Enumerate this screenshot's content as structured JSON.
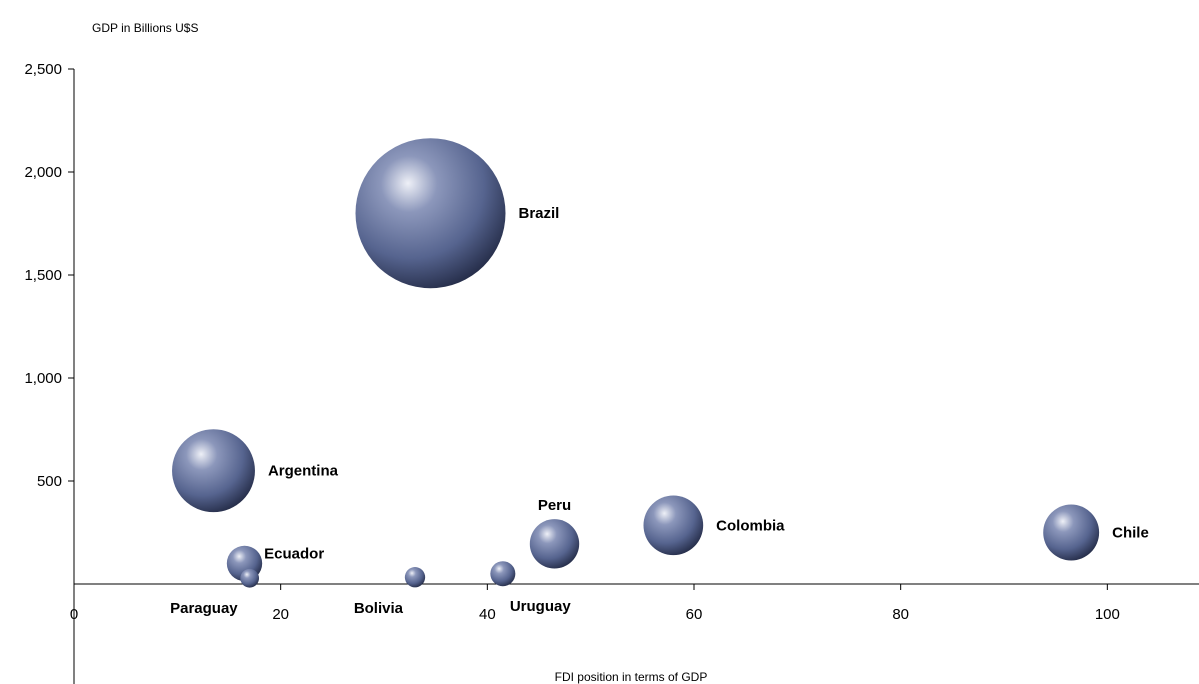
{
  "chart_data": {
    "type": "bubble",
    "ylabel": "GDP in Billions U$S",
    "xlabel": "FDI position in terms of GDP",
    "xlim": [
      0,
      108
    ],
    "ylim": [
      0,
      2500
    ],
    "x_ticks": [
      0,
      20,
      40,
      60,
      80,
      100
    ],
    "y_ticks": [
      500,
      1000,
      1500,
      2000,
      2500
    ],
    "x_tick_labels": [
      "0",
      "20",
      "40",
      "60",
      "80",
      "100"
    ],
    "y_tick_labels": [
      "500",
      "1,000",
      "1,500",
      "2,000",
      "2,500"
    ],
    "grid": false,
    "bubble_color": "#5a6a95",
    "points": [
      {
        "label": "Brazil",
        "x": 34.5,
        "y": 1800,
        "size": 1800
      },
      {
        "label": "Argentina",
        "x": 13.5,
        "y": 550,
        "size": 550
      },
      {
        "label": "Ecuador",
        "x": 16.5,
        "y": 100,
        "size": 100
      },
      {
        "label": "Paraguay",
        "x": 17,
        "y": 28,
        "size": 28
      },
      {
        "label": "Bolivia",
        "x": 33,
        "y": 33,
        "size": 33
      },
      {
        "label": "Uruguay",
        "x": 41.5,
        "y": 50,
        "size": 50
      },
      {
        "label": "Peru",
        "x": 46.5,
        "y": 195,
        "size": 195
      },
      {
        "label": "Colombia",
        "x": 58,
        "y": 285,
        "size": 285
      },
      {
        "label": "Chile",
        "x": 96.5,
        "y": 250,
        "size": 250
      }
    ]
  }
}
